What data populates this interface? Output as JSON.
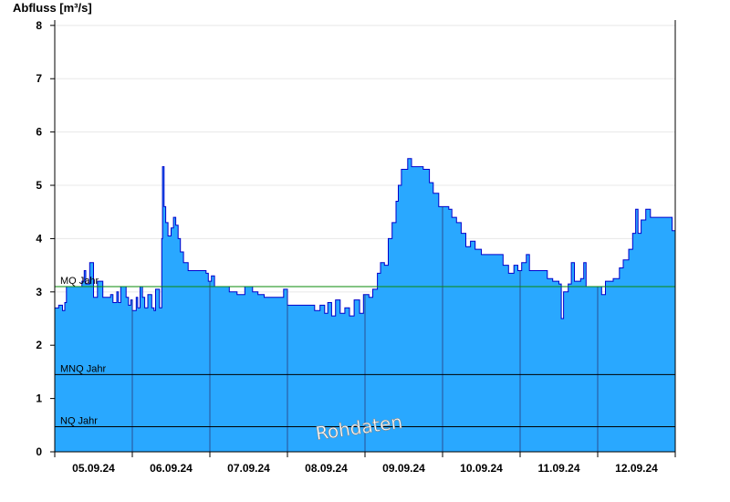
{
  "chart_data": {
    "type": "area",
    "ylabel": "Abfluss [m³/s]",
    "ylim": [
      0,
      8.1
    ],
    "yticks": [
      "0",
      "1",
      "2",
      "3",
      "4",
      "5",
      "6",
      "7",
      "8"
    ],
    "x_tick_labels": [
      "05.09.24",
      "06.09.24",
      "07.09.24",
      "08.09.24",
      "09.09.24",
      "10.09.24",
      "11.09.24",
      "12.09.24"
    ],
    "x_range_days": [
      0,
      8
    ],
    "grid": "horizontal",
    "series": [
      {
        "points": [
          [
            0.0,
            2.7
          ],
          [
            0.05,
            2.75
          ],
          [
            0.1,
            2.65
          ],
          [
            0.13,
            2.8
          ],
          [
            0.15,
            3.1
          ],
          [
            0.3,
            3.1
          ],
          [
            0.35,
            3.2
          ],
          [
            0.38,
            3.4
          ],
          [
            0.4,
            3.15
          ],
          [
            0.45,
            3.55
          ],
          [
            0.5,
            2.9
          ],
          [
            0.55,
            3.2
          ],
          [
            0.62,
            2.9
          ],
          [
            0.72,
            2.95
          ],
          [
            0.75,
            2.8
          ],
          [
            0.8,
            3.0
          ],
          [
            0.82,
            2.8
          ],
          [
            0.85,
            3.1
          ],
          [
            0.92,
            2.9
          ],
          [
            0.95,
            2.75
          ],
          [
            0.98,
            2.85
          ],
          [
            1.0,
            2.65
          ],
          [
            1.05,
            2.9
          ],
          [
            1.07,
            2.7
          ],
          [
            1.1,
            3.1
          ],
          [
            1.13,
            2.9
          ],
          [
            1.16,
            2.7
          ],
          [
            1.2,
            2.95
          ],
          [
            1.25,
            2.7
          ],
          [
            1.28,
            2.65
          ],
          [
            1.3,
            3.05
          ],
          [
            1.35,
            2.7
          ],
          [
            1.38,
            4.0
          ],
          [
            1.39,
            5.35
          ],
          [
            1.41,
            4.6
          ],
          [
            1.43,
            4.3
          ],
          [
            1.46,
            4.05
          ],
          [
            1.5,
            4.2
          ],
          [
            1.53,
            4.4
          ],
          [
            1.56,
            4.25
          ],
          [
            1.59,
            4.0
          ],
          [
            1.62,
            3.75
          ],
          [
            1.66,
            3.55
          ],
          [
            1.72,
            3.4
          ],
          [
            1.95,
            3.35
          ],
          [
            1.98,
            3.2
          ],
          [
            2.02,
            3.3
          ],
          [
            2.06,
            3.1
          ],
          [
            2.2,
            3.1
          ],
          [
            2.25,
            3.0
          ],
          [
            2.35,
            2.95
          ],
          [
            2.45,
            3.1
          ],
          [
            2.55,
            3.0
          ],
          [
            2.62,
            2.95
          ],
          [
            2.7,
            2.9
          ],
          [
            2.9,
            2.9
          ],
          [
            2.95,
            3.05
          ],
          [
            3.0,
            2.75
          ],
          [
            3.3,
            2.75
          ],
          [
            3.35,
            2.65
          ],
          [
            3.42,
            2.75
          ],
          [
            3.48,
            2.6
          ],
          [
            3.52,
            2.8
          ],
          [
            3.57,
            2.55
          ],
          [
            3.62,
            2.85
          ],
          [
            3.68,
            2.6
          ],
          [
            3.74,
            2.7
          ],
          [
            3.8,
            2.55
          ],
          [
            3.86,
            2.85
          ],
          [
            3.93,
            2.6
          ],
          [
            3.98,
            2.95
          ],
          [
            4.05,
            2.9
          ],
          [
            4.1,
            3.05
          ],
          [
            4.16,
            3.35
          ],
          [
            4.2,
            3.55
          ],
          [
            4.25,
            3.5
          ],
          [
            4.3,
            4.0
          ],
          [
            4.35,
            4.3
          ],
          [
            4.4,
            4.7
          ],
          [
            4.43,
            5.0
          ],
          [
            4.47,
            5.3
          ],
          [
            4.55,
            5.5
          ],
          [
            4.6,
            5.35
          ],
          [
            4.75,
            5.3
          ],
          [
            4.83,
            5.05
          ],
          [
            4.88,
            4.85
          ],
          [
            4.95,
            4.6
          ],
          [
            5.08,
            4.55
          ],
          [
            5.12,
            4.4
          ],
          [
            5.18,
            4.3
          ],
          [
            5.24,
            4.1
          ],
          [
            5.3,
            3.85
          ],
          [
            5.36,
            3.95
          ],
          [
            5.42,
            3.8
          ],
          [
            5.5,
            3.7
          ],
          [
            5.7,
            3.7
          ],
          [
            5.78,
            3.5
          ],
          [
            5.85,
            3.35
          ],
          [
            5.92,
            3.5
          ],
          [
            5.97,
            3.4
          ],
          [
            6.02,
            3.55
          ],
          [
            6.08,
            3.7
          ],
          [
            6.12,
            3.4
          ],
          [
            6.3,
            3.4
          ],
          [
            6.35,
            3.25
          ],
          [
            6.42,
            3.2
          ],
          [
            6.5,
            3.15
          ],
          [
            6.53,
            2.5
          ],
          [
            6.56,
            3.0
          ],
          [
            6.62,
            3.15
          ],
          [
            6.66,
            3.55
          ],
          [
            6.7,
            3.2
          ],
          [
            6.78,
            3.25
          ],
          [
            6.82,
            3.55
          ],
          [
            6.85,
            3.1
          ],
          [
            7.0,
            3.1
          ],
          [
            7.05,
            2.95
          ],
          [
            7.1,
            3.2
          ],
          [
            7.2,
            3.25
          ],
          [
            7.28,
            3.45
          ],
          [
            7.33,
            3.6
          ],
          [
            7.4,
            3.8
          ],
          [
            7.45,
            4.1
          ],
          [
            7.49,
            4.55
          ],
          [
            7.52,
            4.1
          ],
          [
            7.56,
            4.35
          ],
          [
            7.62,
            4.55
          ],
          [
            7.68,
            4.4
          ],
          [
            7.92,
            4.4
          ],
          [
            7.96,
            4.15
          ],
          [
            8.0,
            4.2
          ]
        ]
      }
    ],
    "reference_lines": [
      {
        "label": "MQ Jahr",
        "value": 3.1,
        "color": "#0a8a0a"
      },
      {
        "label": "MNQ Jahr",
        "value": 1.45,
        "color": "#000000"
      },
      {
        "label": "NQ Jahr",
        "value": 0.47,
        "color": "#000000"
      }
    ],
    "watermark": "Rohdaten",
    "colors": {
      "fill": "#29a8ff",
      "line": "#0000cc",
      "grid": "#e8e8e8",
      "day_divider": "#2a3a7a"
    }
  }
}
